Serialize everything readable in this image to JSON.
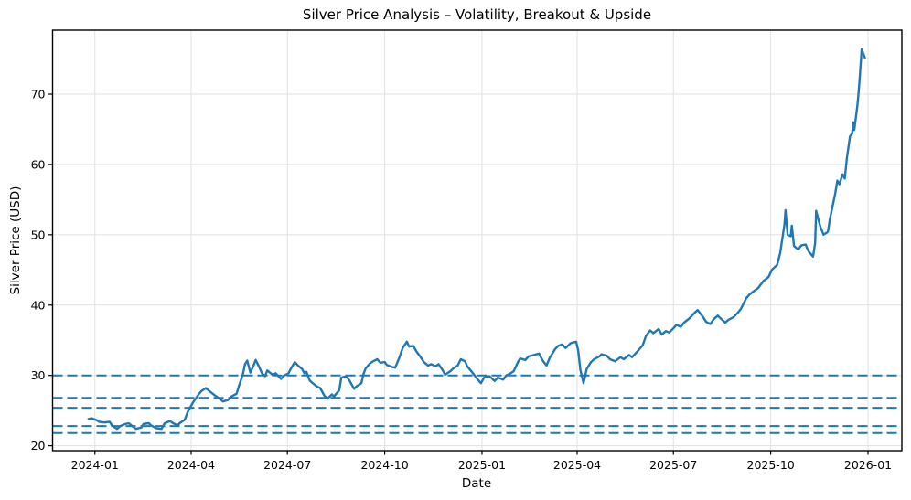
{
  "figure": {
    "title": "Silver Price Analysis – Volatility, Breakout & Upside",
    "xlabel": "Date",
    "ylabel": "Silver Price (USD)"
  },
  "chart_data": {
    "type": "line",
    "title": "Silver Price Analysis – Volatility, Breakout & Upside",
    "xlabel": "Date",
    "ylabel": "Silver Price (USD)",
    "grid": true,
    "legend": "none",
    "background": "#ffffff",
    "line_color": "#1f77b4",
    "xlim": [
      "2023-11-22",
      "2026-02-02"
    ],
    "ylim": [
      19.3,
      79.1
    ],
    "x_ticks": [
      {
        "date": "2024-01-01",
        "label": "2024-01"
      },
      {
        "date": "2024-04-01",
        "label": "2024-04"
      },
      {
        "date": "2024-07-01",
        "label": "2024-07"
      },
      {
        "date": "2024-10-01",
        "label": "2024-10"
      },
      {
        "date": "2025-01-01",
        "label": "2025-01"
      },
      {
        "date": "2025-04-01",
        "label": "2025-04"
      },
      {
        "date": "2025-07-01",
        "label": "2025-07"
      },
      {
        "date": "2025-10-01",
        "label": "2025-10"
      },
      {
        "date": "2026-01-01",
        "label": "2026-01"
      }
    ],
    "y_ticks": [
      20,
      30,
      40,
      50,
      60,
      70
    ],
    "level_lines": {
      "style": "dashed",
      "color": "#1f77b4",
      "values": [
        30.0,
        26.8,
        25.4,
        22.8,
        21.8
      ]
    },
    "series": [
      {
        "name": "Silver Price (USD)",
        "color": "#1f77b4",
        "points": [
          [
            "2023-12-26",
            23.8
          ],
          [
            "2023-12-29",
            23.9
          ],
          [
            "2024-01-03",
            23.6
          ],
          [
            "2024-01-05",
            23.4
          ],
          [
            "2024-01-10",
            23.3
          ],
          [
            "2024-01-15",
            23.4
          ],
          [
            "2024-01-17",
            22.9
          ],
          [
            "2024-01-22",
            22.4
          ],
          [
            "2024-01-25",
            22.8
          ],
          [
            "2024-01-30",
            23.1
          ],
          [
            "2024-02-02",
            23.2
          ],
          [
            "2024-02-06",
            22.7
          ],
          [
            "2024-02-09",
            22.4
          ],
          [
            "2024-02-14",
            22.6
          ],
          [
            "2024-02-16",
            23.1
          ],
          [
            "2024-02-21",
            23.2
          ],
          [
            "2024-02-23",
            22.9
          ],
          [
            "2024-02-28",
            22.5
          ],
          [
            "2024-03-04",
            22.4
          ],
          [
            "2024-03-07",
            23.2
          ],
          [
            "2024-03-12",
            23.5
          ],
          [
            "2024-03-15",
            23.2
          ],
          [
            "2024-03-19",
            22.9
          ],
          [
            "2024-03-22",
            23.3
          ],
          [
            "2024-03-26",
            23.7
          ],
          [
            "2024-03-29",
            24.9
          ],
          [
            "2024-04-03",
            26.2
          ],
          [
            "2024-04-08",
            27.3
          ],
          [
            "2024-04-11",
            27.8
          ],
          [
            "2024-04-15",
            28.2
          ],
          [
            "2024-04-18",
            27.8
          ],
          [
            "2024-04-23",
            27.2
          ],
          [
            "2024-04-26",
            26.9
          ],
          [
            "2024-05-01",
            26.3
          ],
          [
            "2024-05-06",
            26.5
          ],
          [
            "2024-05-09",
            27.0
          ],
          [
            "2024-05-14",
            27.4
          ],
          [
            "2024-05-16",
            28.4
          ],
          [
            "2024-05-20",
            30.2
          ],
          [
            "2024-05-22",
            31.6
          ],
          [
            "2024-05-24",
            32.1
          ],
          [
            "2024-05-27",
            30.4
          ],
          [
            "2024-05-30",
            31.4
          ],
          [
            "2024-06-01",
            32.2
          ],
          [
            "2024-06-04",
            31.3
          ],
          [
            "2024-06-07",
            30.3
          ],
          [
            "2024-06-10",
            29.9
          ],
          [
            "2024-06-12",
            30.7
          ],
          [
            "2024-06-17",
            30.1
          ],
          [
            "2024-06-20",
            30.3
          ],
          [
            "2024-06-25",
            29.5
          ],
          [
            "2024-06-28",
            30.0
          ],
          [
            "2024-07-02",
            30.3
          ],
          [
            "2024-07-04",
            30.9
          ],
          [
            "2024-07-08",
            31.9
          ],
          [
            "2024-07-11",
            31.4
          ],
          [
            "2024-07-15",
            30.9
          ],
          [
            "2024-07-17",
            30.3
          ],
          [
            "2024-07-19",
            30.5
          ],
          [
            "2024-07-22",
            29.3
          ],
          [
            "2024-07-25",
            28.9
          ],
          [
            "2024-07-29",
            28.4
          ],
          [
            "2024-08-01",
            28.2
          ],
          [
            "2024-08-05",
            27.1
          ],
          [
            "2024-08-08",
            26.7
          ],
          [
            "2024-08-12",
            27.3
          ],
          [
            "2024-08-14",
            27.0
          ],
          [
            "2024-08-19",
            27.9
          ],
          [
            "2024-08-21",
            29.7
          ],
          [
            "2024-08-26",
            29.9
          ],
          [
            "2024-08-29",
            29.2
          ],
          [
            "2024-09-02",
            28.1
          ],
          [
            "2024-09-05",
            28.5
          ],
          [
            "2024-09-09",
            28.9
          ],
          [
            "2024-09-11",
            30.2
          ],
          [
            "2024-09-13",
            31.0
          ],
          [
            "2024-09-17",
            31.7
          ],
          [
            "2024-09-20",
            32.0
          ],
          [
            "2024-09-24",
            32.3
          ],
          [
            "2024-09-27",
            31.8
          ],
          [
            "2024-10-01",
            31.9
          ],
          [
            "2024-10-03",
            31.5
          ],
          [
            "2024-10-08",
            31.2
          ],
          [
            "2024-10-11",
            31.1
          ],
          [
            "2024-10-15",
            32.6
          ],
          [
            "2024-10-18",
            33.9
          ],
          [
            "2024-10-22",
            34.8
          ],
          [
            "2024-10-24",
            34.1
          ],
          [
            "2024-10-28",
            34.2
          ],
          [
            "2024-10-31",
            33.4
          ],
          [
            "2024-11-04",
            32.6
          ],
          [
            "2024-11-07",
            31.9
          ],
          [
            "2024-11-11",
            31.4
          ],
          [
            "2024-11-14",
            31.6
          ],
          [
            "2024-11-18",
            31.3
          ],
          [
            "2024-11-21",
            31.6
          ],
          [
            "2024-11-25",
            30.7
          ],
          [
            "2024-11-27",
            30.1
          ],
          [
            "2024-12-02",
            30.6
          ],
          [
            "2024-12-05",
            31.0
          ],
          [
            "2024-12-09",
            31.4
          ],
          [
            "2024-12-12",
            32.3
          ],
          [
            "2024-12-16",
            32.0
          ],
          [
            "2024-12-18",
            31.3
          ],
          [
            "2024-12-23",
            30.4
          ],
          [
            "2024-12-27",
            29.6
          ],
          [
            "2024-12-31",
            28.9
          ],
          [
            "2025-01-03",
            29.7
          ],
          [
            "2025-01-08",
            29.9
          ],
          [
            "2025-01-13",
            29.2
          ],
          [
            "2025-01-16",
            29.7
          ],
          [
            "2025-01-21",
            29.4
          ],
          [
            "2025-01-24",
            30.0
          ],
          [
            "2025-01-28",
            30.3
          ],
          [
            "2025-01-31",
            30.6
          ],
          [
            "2025-02-04",
            31.9
          ],
          [
            "2025-02-06",
            32.4
          ],
          [
            "2025-02-11",
            32.2
          ],
          [
            "2025-02-14",
            32.7
          ],
          [
            "2025-02-19",
            32.9
          ],
          [
            "2025-02-24",
            33.1
          ],
          [
            "2025-02-27",
            32.2
          ],
          [
            "2025-03-03",
            31.4
          ],
          [
            "2025-03-06",
            32.5
          ],
          [
            "2025-03-11",
            33.7
          ],
          [
            "2025-03-14",
            34.2
          ],
          [
            "2025-03-18",
            34.4
          ],
          [
            "2025-03-21",
            33.9
          ],
          [
            "2025-03-26",
            34.6
          ],
          [
            "2025-03-31",
            34.8
          ],
          [
            "2025-04-02",
            33.5
          ],
          [
            "2025-04-04",
            30.8
          ],
          [
            "2025-04-07",
            28.9
          ],
          [
            "2025-04-10",
            30.9
          ],
          [
            "2025-04-14",
            31.9
          ],
          [
            "2025-04-17",
            32.3
          ],
          [
            "2025-04-22",
            32.7
          ],
          [
            "2025-04-24",
            33.0
          ],
          [
            "2025-04-29",
            32.8
          ],
          [
            "2025-05-02",
            32.3
          ],
          [
            "2025-05-07",
            32.0
          ],
          [
            "2025-05-12",
            32.6
          ],
          [
            "2025-05-15",
            32.3
          ],
          [
            "2025-05-20",
            32.9
          ],
          [
            "2025-05-23",
            32.6
          ],
          [
            "2025-05-28",
            33.4
          ],
          [
            "2025-06-02",
            34.3
          ],
          [
            "2025-06-05",
            35.6
          ],
          [
            "2025-06-09",
            36.4
          ],
          [
            "2025-06-12",
            36.0
          ],
          [
            "2025-06-17",
            36.6
          ],
          [
            "2025-06-20",
            35.8
          ],
          [
            "2025-06-24",
            36.3
          ],
          [
            "2025-06-27",
            36.1
          ],
          [
            "2025-07-01",
            36.7
          ],
          [
            "2025-07-04",
            37.2
          ],
          [
            "2025-07-08",
            36.9
          ],
          [
            "2025-07-11",
            37.5
          ],
          [
            "2025-07-16",
            38.1
          ],
          [
            "2025-07-21",
            38.9
          ],
          [
            "2025-07-24",
            39.3
          ],
          [
            "2025-07-29",
            38.3
          ],
          [
            "2025-08-01",
            37.6
          ],
          [
            "2025-08-05",
            37.3
          ],
          [
            "2025-08-08",
            38.0
          ],
          [
            "2025-08-12",
            38.5
          ],
          [
            "2025-08-14",
            38.2
          ],
          [
            "2025-08-19",
            37.5
          ],
          [
            "2025-08-22",
            37.9
          ],
          [
            "2025-08-27",
            38.3
          ],
          [
            "2025-09-01",
            39.1
          ],
          [
            "2025-09-03",
            39.5
          ],
          [
            "2025-09-08",
            41.0
          ],
          [
            "2025-09-11",
            41.5
          ],
          [
            "2025-09-16",
            42.1
          ],
          [
            "2025-09-19",
            42.4
          ],
          [
            "2025-09-24",
            43.4
          ],
          [
            "2025-09-29",
            44.0
          ],
          [
            "2025-10-02",
            45.0
          ],
          [
            "2025-10-07",
            45.7
          ],
          [
            "2025-10-10",
            47.4
          ],
          [
            "2025-10-14",
            51.5
          ],
          [
            "2025-10-15",
            53.5
          ],
          [
            "2025-10-17",
            50.0
          ],
          [
            "2025-10-20",
            49.8
          ],
          [
            "2025-10-21",
            51.3
          ],
          [
            "2025-10-23",
            48.4
          ],
          [
            "2025-10-27",
            47.9
          ],
          [
            "2025-10-30",
            48.5
          ],
          [
            "2025-11-03",
            48.6
          ],
          [
            "2025-11-06",
            47.6
          ],
          [
            "2025-11-10",
            46.9
          ],
          [
            "2025-11-12",
            48.8
          ],
          [
            "2025-11-13",
            53.4
          ],
          [
            "2025-11-17",
            51.1
          ],
          [
            "2025-11-20",
            50.0
          ],
          [
            "2025-11-24",
            50.4
          ],
          [
            "2025-11-26",
            52.3
          ],
          [
            "2025-12-01",
            55.9
          ],
          [
            "2025-12-03",
            57.7
          ],
          [
            "2025-12-05",
            57.2
          ],
          [
            "2025-12-08",
            58.6
          ],
          [
            "2025-12-10",
            58.0
          ],
          [
            "2025-12-12",
            60.9
          ],
          [
            "2025-12-15",
            64.0
          ],
          [
            "2025-12-17",
            64.4
          ],
          [
            "2025-12-18",
            66.0
          ],
          [
            "2025-12-19",
            64.9
          ],
          [
            "2025-12-22",
            68.4
          ],
          [
            "2025-12-23",
            70.1
          ],
          [
            "2025-12-24",
            71.9
          ],
          [
            "2025-12-26",
            76.4
          ],
          [
            "2025-12-29",
            75.2
          ]
        ]
      }
    ]
  }
}
